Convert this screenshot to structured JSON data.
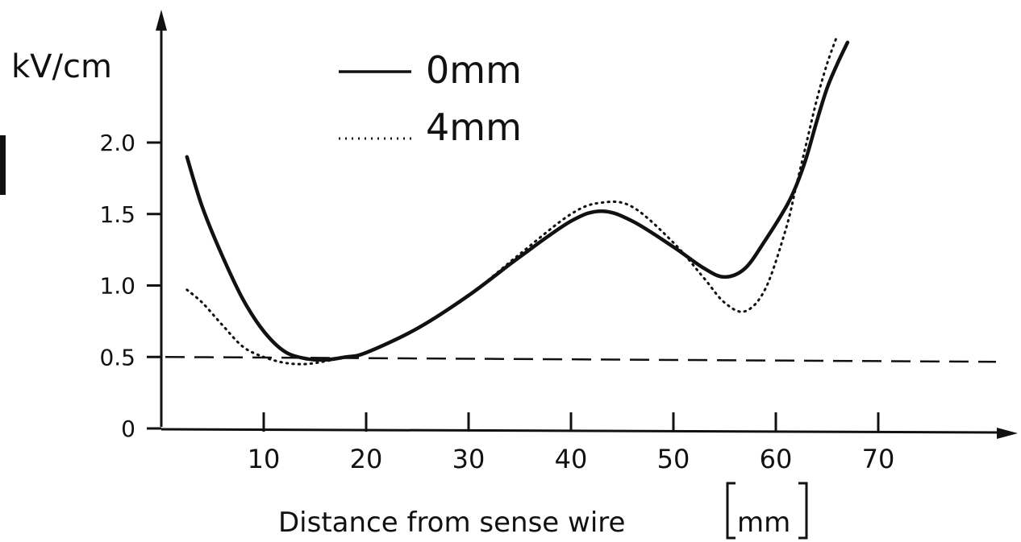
{
  "chart_data": {
    "type": "line",
    "title": "",
    "xlabel": "Distance from sense wire",
    "xunit": "mm",
    "ylabel": "kV/cm",
    "xlim": [
      0,
      80
    ],
    "ylim": [
      0,
      2.4
    ],
    "x_ticks": [
      10,
      20,
      30,
      40,
      50,
      60,
      70
    ],
    "x_tick_labels": [
      "10",
      "20",
      "30",
      "40",
      "50",
      "60",
      "70"
    ],
    "y_ticks": [
      0,
      0.5,
      1.0,
      1.5,
      2.0
    ],
    "y_tick_labels": [
      "0",
      "0.5",
      "1.0",
      "1.5",
      "2.0"
    ],
    "grid": false,
    "legend_position": "top-center",
    "reference_line": {
      "y": 0.5,
      "style": "dashed"
    },
    "series": [
      {
        "name": "0mm",
        "style": "solid",
        "color": "#111111",
        "x": [
          2.5,
          4,
          6,
          8,
          10,
          12,
          14,
          16,
          18,
          20,
          25,
          30,
          35,
          40,
          43,
          46,
          50,
          53,
          55,
          57,
          59,
          61,
          62,
          63,
          64,
          65,
          66,
          67
        ],
        "y": [
          1.9,
          1.55,
          1.2,
          0.9,
          0.68,
          0.54,
          0.49,
          0.48,
          0.5,
          0.53,
          0.7,
          0.93,
          1.2,
          1.45,
          1.52,
          1.45,
          1.27,
          1.12,
          1.06,
          1.12,
          1.32,
          1.55,
          1.7,
          1.9,
          2.15,
          2.38,
          2.55,
          2.7
        ]
      },
      {
        "name": "4mm",
        "style": "dotted",
        "color": "#111111",
        "x": [
          2.5,
          4,
          6,
          8,
          10,
          12,
          14,
          16,
          18,
          20,
          25,
          30,
          35,
          40,
          43,
          46,
          50,
          53,
          55,
          57,
          59,
          61,
          62,
          63,
          64,
          65,
          66
        ],
        "y": [
          0.97,
          0.88,
          0.72,
          0.57,
          0.5,
          0.46,
          0.45,
          0.47,
          0.5,
          0.53,
          0.7,
          0.93,
          1.22,
          1.5,
          1.58,
          1.55,
          1.3,
          1.05,
          0.88,
          0.82,
          0.98,
          1.4,
          1.7,
          2.0,
          2.3,
          2.55,
          2.75
        ]
      }
    ]
  }
}
